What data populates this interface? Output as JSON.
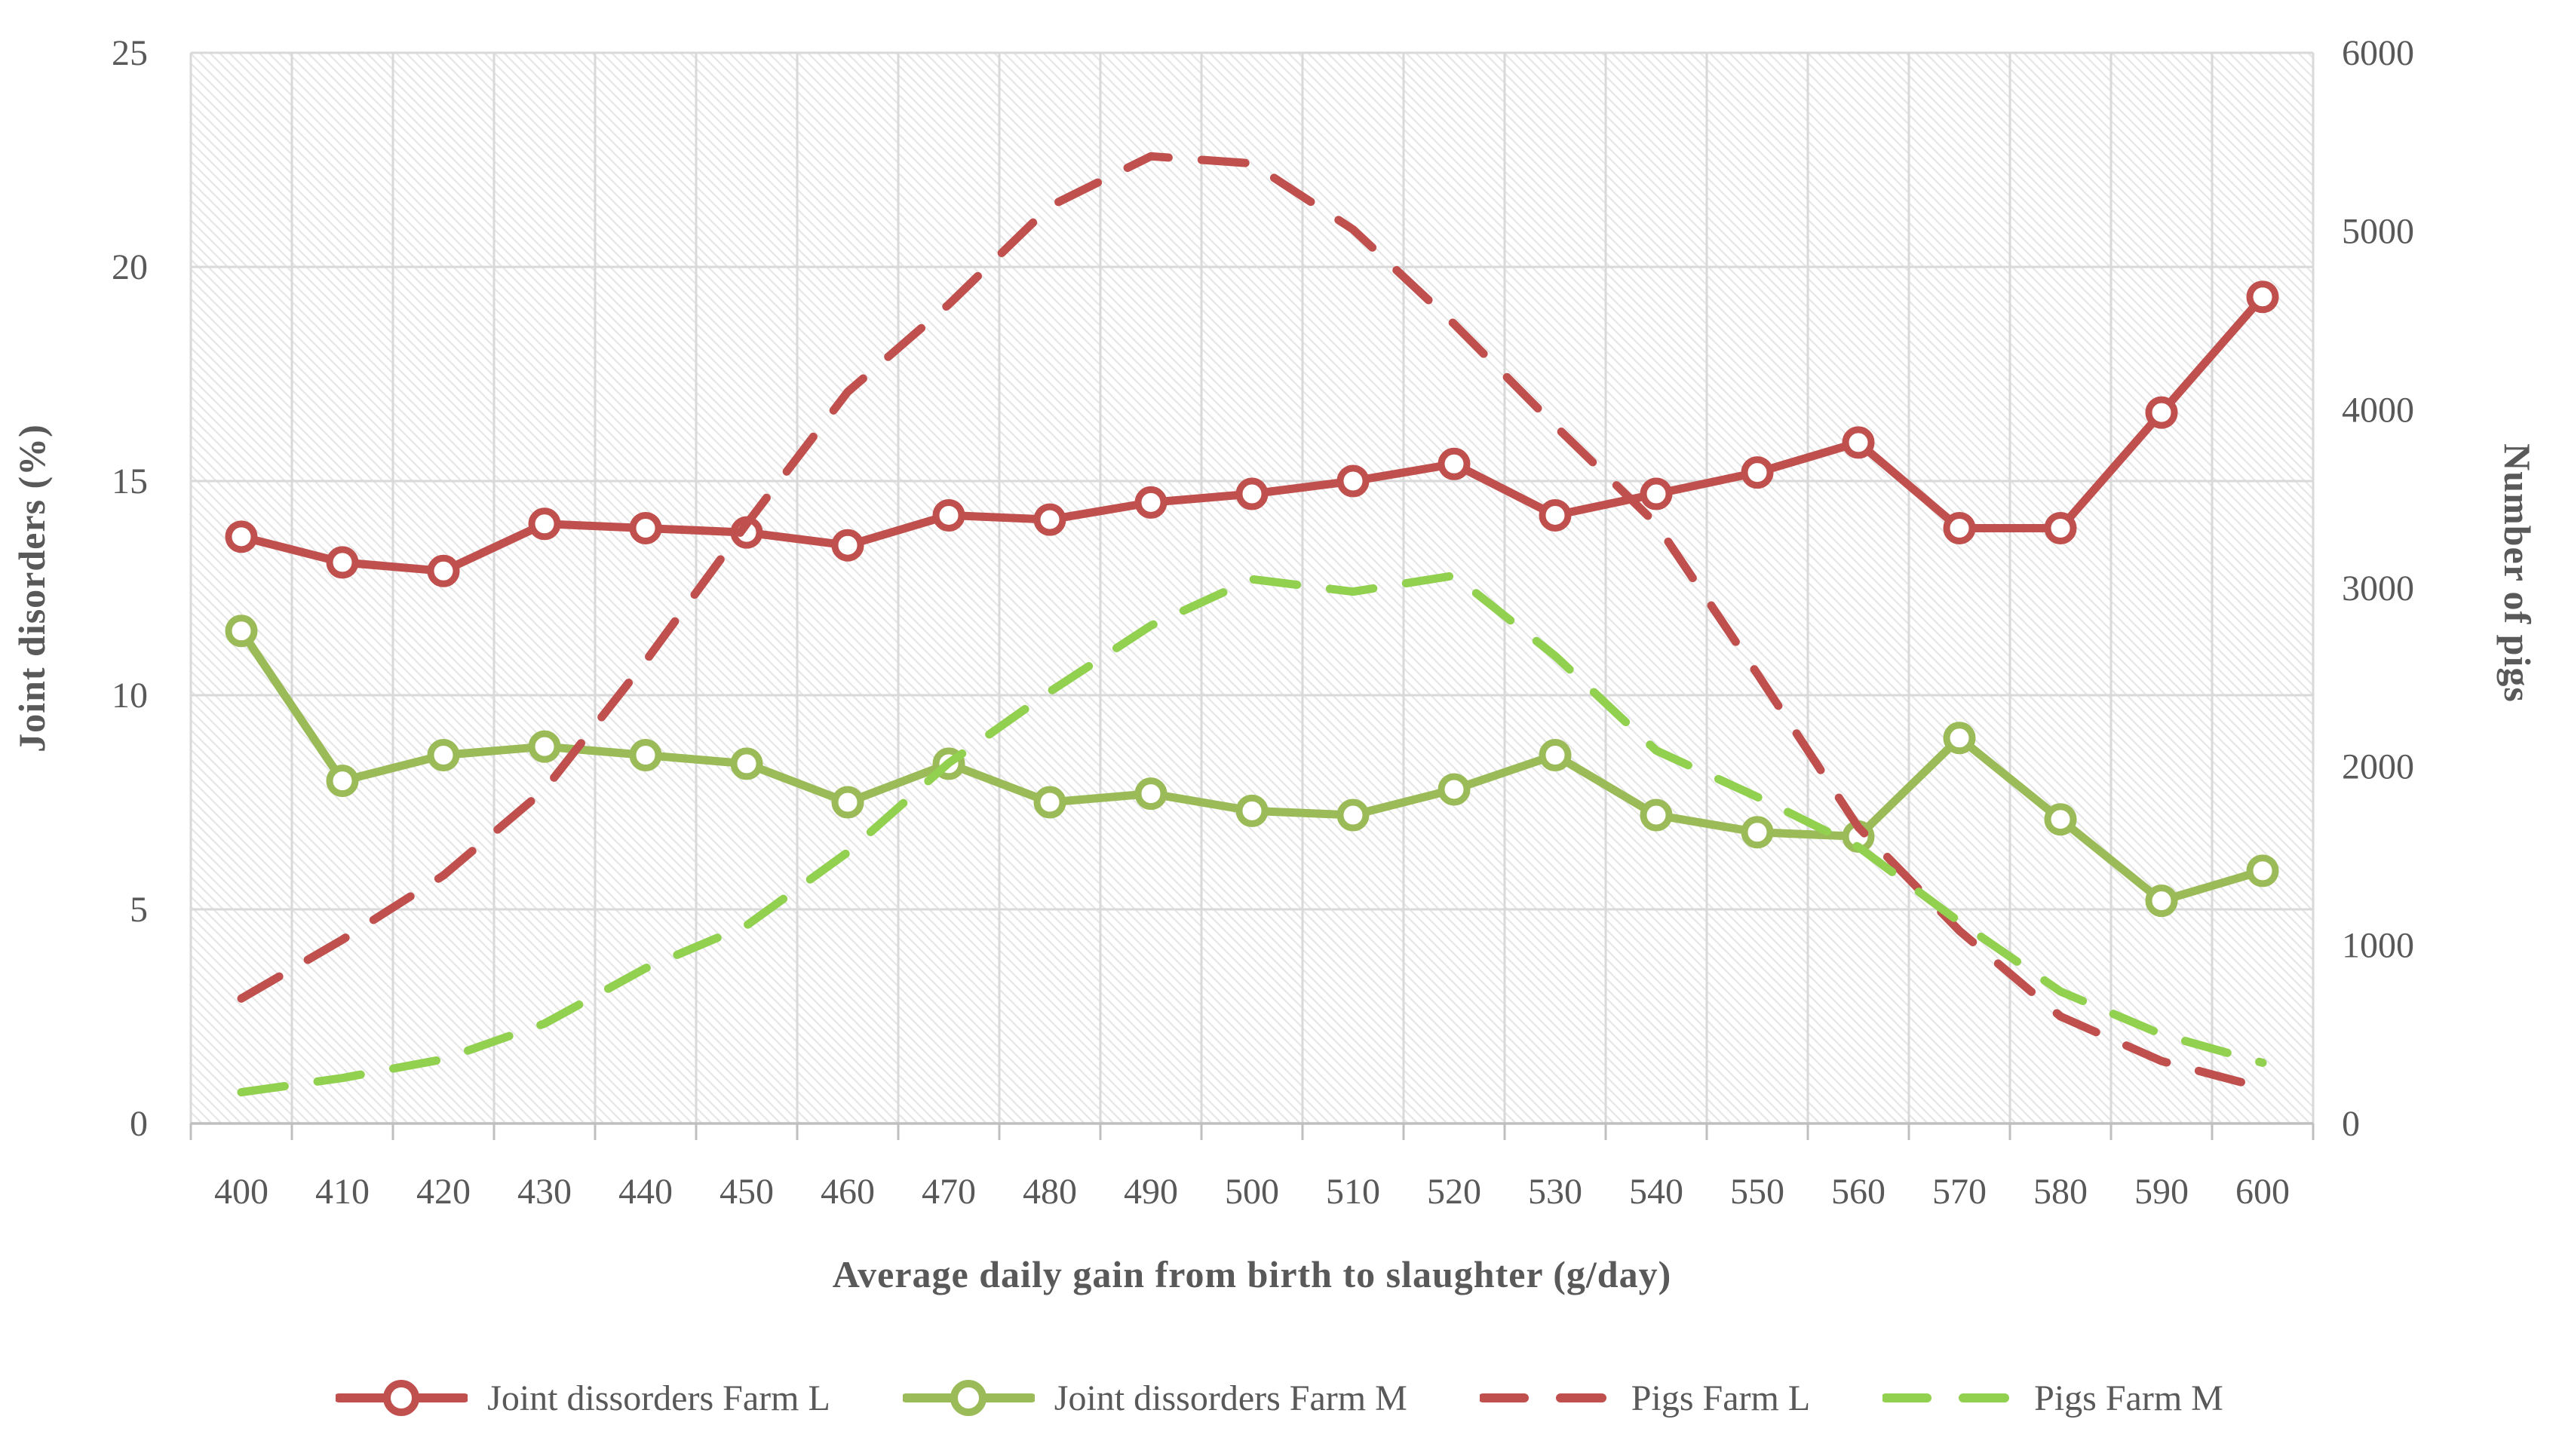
{
  "chart_data": {
    "type": "line",
    "x": [
      400,
      410,
      420,
      430,
      440,
      450,
      460,
      470,
      480,
      490,
      500,
      510,
      520,
      530,
      540,
      550,
      560,
      570,
      580,
      590,
      600
    ],
    "xlabel": "Average daily gain from birth to slaughter (g/day)",
    "ylabel_left": "Joint disorders (%)",
    "ylabel_right": "Number of pigs",
    "ylim_left": [
      0,
      25
    ],
    "ylim_right": [
      0,
      6000
    ],
    "yticks_left": [
      0,
      5,
      10,
      15,
      20,
      25
    ],
    "yticks_right": [
      0,
      1000,
      2000,
      3000,
      4000,
      5000,
      6000
    ],
    "grid": true,
    "plot_background": "diagonal-hatch",
    "legend_position": "bottom",
    "series": [
      {
        "name": "Joint dissorders Farm L",
        "axis": "left",
        "style": "solid",
        "marker": "circle",
        "color": "#C0504D",
        "values": [
          13.7,
          13.1,
          12.9,
          14.0,
          13.9,
          13.8,
          13.5,
          14.2,
          14.1,
          14.5,
          14.7,
          15.0,
          15.4,
          14.2,
          14.7,
          15.2,
          15.9,
          13.9,
          13.9,
          16.6,
          19.3
        ]
      },
      {
        "name": "Joint dissorders Farm M",
        "axis": "left",
        "style": "solid",
        "marker": "circle",
        "color": "#9BBB59",
        "values": [
          11.5,
          8.0,
          8.6,
          8.8,
          8.6,
          8.4,
          7.5,
          8.4,
          7.5,
          7.7,
          7.3,
          7.2,
          7.8,
          8.6,
          7.2,
          6.8,
          6.7,
          9.0,
          7.1,
          5.2,
          5.9
        ]
      },
      {
        "name": "Pigs Farm L",
        "axis": "right",
        "style": "dashed",
        "marker": "none",
        "color": "#C0504D",
        "values": [
          700,
          1030,
          1390,
          1870,
          2590,
          3360,
          4100,
          4590,
          5140,
          5420,
          5380,
          5010,
          4480,
          3910,
          3360,
          2520,
          1660,
          1080,
          600,
          350,
          200
        ]
      },
      {
        "name": "Pigs Farm M",
        "axis": "right",
        "style": "dashed",
        "marker": "none",
        "color": "#92D050",
        "values": [
          175,
          255,
          360,
          560,
          870,
          1110,
          1520,
          2020,
          2420,
          2790,
          3050,
          2980,
          3070,
          2620,
          2090,
          1830,
          1550,
          1130,
          740,
          500,
          340
        ]
      }
    ]
  },
  "colors": {
    "text": "#595959",
    "gridline": "#D9D9D9",
    "axis_line": "#BFBFBF",
    "hatch": "#E6E6E6",
    "marker_fill": "#FFFFFF"
  }
}
